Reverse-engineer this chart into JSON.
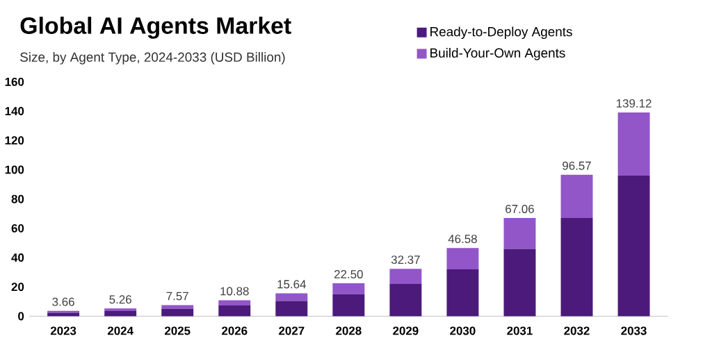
{
  "chart_data": {
    "type": "bar",
    "stacked": true,
    "title": "Global AI Agents Market",
    "subtitle": "Size, by Agent Type, 2024-2033 (USD Billion)",
    "categories": [
      "2023",
      "2024",
      "2025",
      "2026",
      "2027",
      "2028",
      "2029",
      "2030",
      "2031",
      "2032",
      "2033"
    ],
    "series": [
      {
        "name": "Ready-to-Deploy Agents",
        "color": "#4b1a7a",
        "values": [
          2.4,
          3.5,
          5.1,
          7.3,
          10.4,
          15,
          22,
          32,
          46,
          67,
          96
        ]
      },
      {
        "name": "Build-Your-Own Agents",
        "color": "#9256c9",
        "values": [
          1.26,
          1.76,
          2.47,
          3.58,
          5.24,
          7.5,
          10.37,
          14.58,
          21.06,
          29.57,
          43.12
        ]
      }
    ],
    "totals": [
      "3.66",
      "5.26",
      "7.57",
      "10.88",
      "15.64",
      "22.50",
      "32.37",
      "46.58",
      "67.06",
      "96.57",
      "139.12"
    ],
    "ylim": [
      0,
      160
    ],
    "yticks": [
      0,
      20,
      40,
      60,
      80,
      100,
      120,
      140,
      160
    ],
    "grid": false,
    "legend": "top right"
  }
}
